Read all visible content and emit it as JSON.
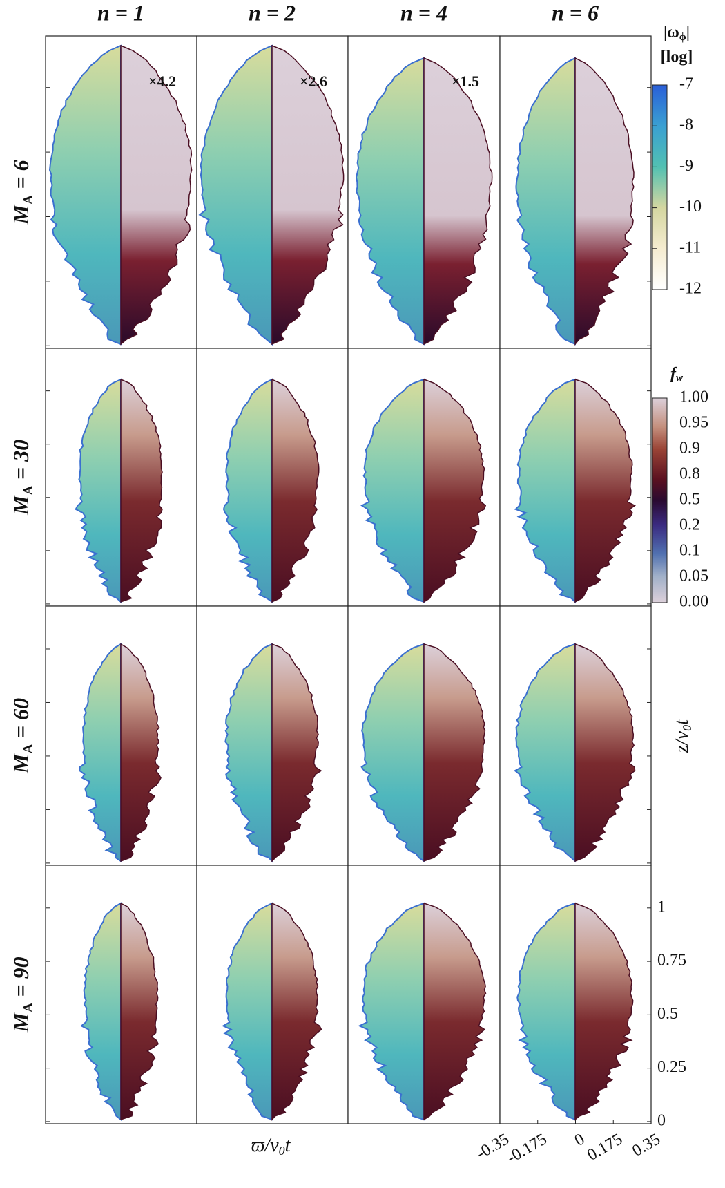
{
  "columns": [
    "n = 1",
    "n = 2",
    "n = 4",
    "n = 6"
  ],
  "rows": [
    {
      "symbol": "M",
      "subscript": "A",
      "relation": " = 6"
    },
    {
      "symbol": "M",
      "subscript": "A",
      "relation": " = 30"
    },
    {
      "symbol": "M",
      "subscript": "A",
      "relation": " = 60"
    },
    {
      "symbol": "M",
      "subscript": "A",
      "relation": " = 90"
    }
  ],
  "scale_factors": [
    "×4.2",
    "×2.6",
    "×1.5"
  ],
  "colorbar_vorticity": {
    "title": {
      "main": "|ω",
      "subscript": "ϕ",
      "end": "|"
    },
    "title2": "[log]",
    "ticks": [
      -7,
      -8,
      -9,
      -10,
      -11,
      -12
    ]
  },
  "colorbar_fraction": {
    "title": {
      "main": "f",
      "subscript": "w"
    },
    "tick_labels": [
      "1.00",
      "0.95",
      "0.9",
      "0.8",
      "0.5",
      "0.2",
      "0.1",
      "0.05",
      "0.00"
    ]
  },
  "y_axis": {
    "label": {
      "main": "z/v",
      "subscript": "0",
      "end": "t"
    },
    "ylim": [
      -0.01,
      1.2
    ],
    "yticks": [
      0,
      0.25,
      0.5,
      0.75,
      1
    ]
  },
  "x_axis": {
    "label": {
      "main": "ϖ/v",
      "subscript": "0",
      "end": "t"
    },
    "xlim": [
      -0.35,
      0.35
    ],
    "xticks": [
      -0.35,
      -0.175,
      0,
      0.175,
      0.35
    ]
  }
}
